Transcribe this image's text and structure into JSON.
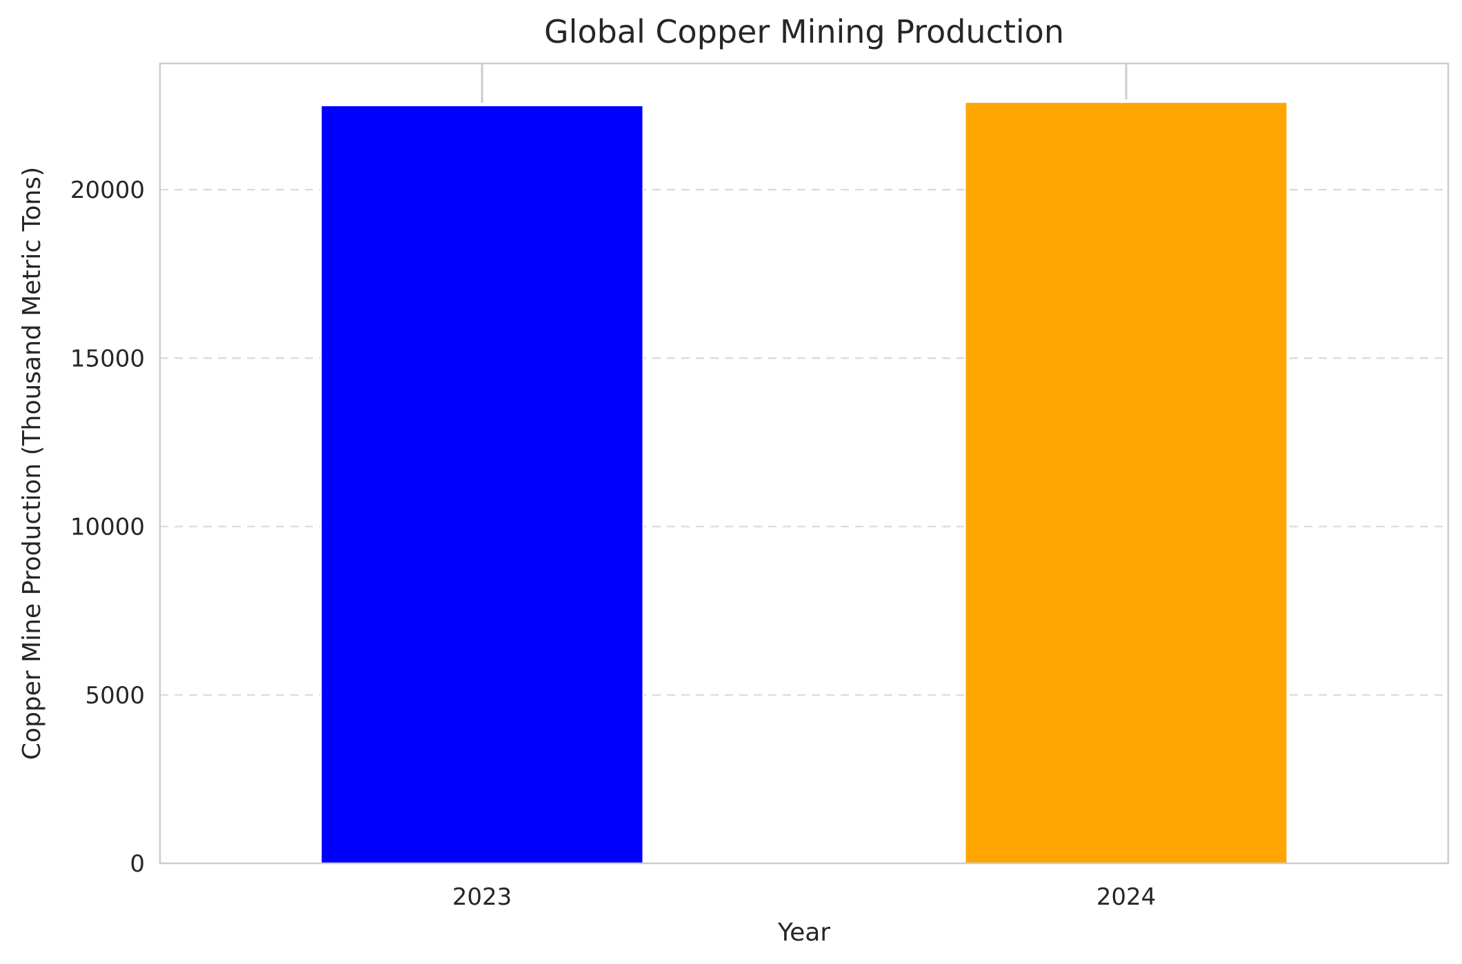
{
  "chart_data": {
    "type": "bar",
    "title": "Global Copper Mining Production",
    "xlabel": "Year",
    "ylabel": "Copper Mine Production (Thousand Metric Tons)",
    "categories": [
      "2023",
      "2024"
    ],
    "values": [
      22500,
      22600
    ],
    "colors": [
      "#0000ff",
      "#ffa500"
    ],
    "ylim": [
      0,
      23750
    ],
    "yticks": [
      0,
      5000,
      10000,
      15000,
      20000
    ],
    "grid": "y-dashed",
    "error_bars": [
      {
        "category": "2023",
        "value": 22500,
        "upper": 23750
      },
      {
        "category": "2024",
        "value": 22600,
        "upper": 23750
      }
    ]
  }
}
